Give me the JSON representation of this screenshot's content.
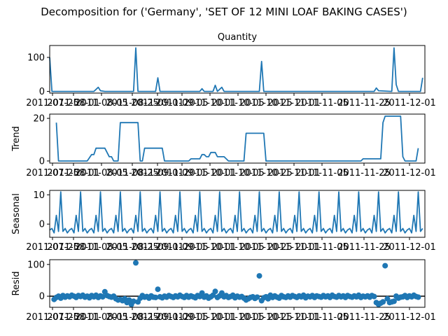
{
  "figure": {
    "suptitle": "Decomposition for ('Germany', 'SET OF 12 MINI LOAF BAKING CASES')",
    "line_color": "#1f77b4"
  },
  "chart_data": [
    {
      "type": "line",
      "title": "Quantity",
      "ylabel": "",
      "ylim": [
        -5,
        135
      ],
      "yticks": [
        0,
        100
      ],
      "x_ticks": [
        "2011-07-25",
        "2011-08-01",
        "2011-08-05",
        "2011-08-25",
        "2011-09-01",
        "2011-09-05",
        "2011-10-01",
        "2011-10-05",
        "2011-10-25",
        "2011-11-01",
        "2011-11-05",
        "2011-11-25",
        "2011-12-01"
      ],
      "points": [
        [
          0,
          100
        ],
        [
          1,
          0
        ],
        [
          20,
          0
        ],
        [
          22,
          12
        ],
        [
          23,
          2
        ],
        [
          25,
          0
        ],
        [
          38,
          0
        ],
        [
          39,
          128
        ],
        [
          40,
          0
        ],
        [
          48,
          0
        ],
        [
          49,
          40
        ],
        [
          50,
          0
        ],
        [
          68,
          0
        ],
        [
          69,
          8
        ],
        [
          70,
          0
        ],
        [
          74,
          0
        ],
        [
          75,
          18
        ],
        [
          76,
          0
        ],
        [
          78,
          12
        ],
        [
          79,
          0
        ],
        [
          95,
          0
        ],
        [
          96,
          88
        ],
        [
          97,
          0
        ],
        [
          147,
          0
        ],
        [
          148,
          10
        ],
        [
          149,
          2
        ],
        [
          155,
          0
        ],
        [
          156,
          128
        ],
        [
          157,
          20
        ],
        [
          158,
          0
        ],
        [
          168,
          0
        ],
        [
          169,
          40
        ]
      ]
    },
    {
      "type": "line",
      "title": "",
      "ylabel": "Trend",
      "ylim": [
        -1,
        22
      ],
      "yticks": [
        0,
        20
      ],
      "x_ticks": [
        "2011-07-25",
        "2011-08-01",
        "2011-08-05",
        "2011-08-25",
        "2011-09-01",
        "2011-09-05",
        "2011-10-01",
        "2011-10-05",
        "2011-10-25",
        "2011-11-01",
        "2011-11-05",
        "2011-11-25",
        "2011-12-01"
      ],
      "points": [
        [
          3,
          18
        ],
        [
          4,
          0
        ],
        [
          17,
          0
        ],
        [
          19,
          3
        ],
        [
          20,
          3
        ],
        [
          21,
          6
        ],
        [
          25,
          6
        ],
        [
          27,
          2
        ],
        [
          28,
          2
        ],
        [
          29,
          0
        ],
        [
          31,
          0
        ],
        [
          32,
          18
        ],
        [
          40,
          18
        ],
        [
          41,
          0
        ],
        [
          42,
          0
        ],
        [
          43,
          6
        ],
        [
          51,
          6
        ],
        [
          52,
          0
        ],
        [
          63,
          0
        ],
        [
          64,
          1
        ],
        [
          68,
          1
        ],
        [
          69,
          3
        ],
        [
          70,
          3
        ],
        [
          71,
          2
        ],
        [
          72,
          2
        ],
        [
          73,
          4
        ],
        [
          75,
          4
        ],
        [
          76,
          2
        ],
        [
          79,
          2
        ],
        [
          80,
          1
        ],
        [
          81,
          0
        ],
        [
          88,
          0
        ],
        [
          89,
          13
        ],
        [
          97,
          13
        ],
        [
          98,
          0
        ],
        [
          141,
          0
        ],
        [
          142,
          1
        ],
        [
          150,
          1
        ],
        [
          151,
          18
        ],
        [
          152,
          21
        ],
        [
          159,
          21
        ],
        [
          160,
          2
        ],
        [
          161,
          0
        ],
        [
          166,
          0
        ],
        [
          167,
          6
        ]
      ]
    },
    {
      "type": "line",
      "title": "",
      "ylabel": "Seasonal",
      "ylim": [
        -4.5,
        11.5
      ],
      "yticks": [
        0,
        10
      ],
      "x_ticks": [
        "2011-07-25",
        "2011-08-01",
        "2011-08-05",
        "2011-08-25",
        "2011-09-01",
        "2011-09-05",
        "2011-10-01",
        "2011-10-05",
        "2011-10-25",
        "2011-11-01",
        "2011-11-05",
        "2011-11-25",
        "2011-12-01"
      ],
      "pattern": [
        -2,
        -1.5,
        -3,
        3,
        -2.5,
        11,
        -2.5,
        -1.5,
        -3
      ],
      "n": 170
    },
    {
      "type": "scatter",
      "title": "",
      "ylabel": "Resid",
      "ylim": [
        -35,
        115
      ],
      "yticks": [
        0,
        100
      ],
      "x_ticks": [
        "2011-07-25",
        "2011-08-01",
        "2011-08-05",
        "2011-08-25",
        "2011-09-01",
        "2011-09-05",
        "2011-10-01",
        "2011-10-05",
        "2011-10-25",
        "2011-11-01",
        "2011-11-05",
        "2011-11-25",
        "2011-12-01"
      ],
      "baseline": 0,
      "points": [
        [
          2,
          -10
        ],
        [
          3,
          -4
        ],
        [
          4,
          0
        ],
        [
          5,
          -6
        ],
        [
          6,
          2
        ],
        [
          7,
          -3
        ],
        [
          8,
          1
        ],
        [
          9,
          -2
        ],
        [
          10,
          3
        ],
        [
          11,
          0
        ],
        [
          12,
          -4
        ],
        [
          13,
          2
        ],
        [
          14,
          -1
        ],
        [
          15,
          3
        ],
        [
          16,
          -3
        ],
        [
          17,
          0
        ],
        [
          18,
          -5
        ],
        [
          19,
          2
        ],
        [
          20,
          -2
        ],
        [
          21,
          3
        ],
        [
          22,
          -4
        ],
        [
          23,
          1
        ],
        [
          24,
          -2
        ],
        [
          25,
          14
        ],
        [
          26,
          2
        ],
        [
          27,
          -1
        ],
        [
          28,
          -3
        ],
        [
          29,
          0
        ],
        [
          30,
          -8
        ],
        [
          31,
          -12
        ],
        [
          32,
          -10
        ],
        [
          33,
          -14
        ],
        [
          34,
          -8
        ],
        [
          35,
          -20
        ],
        [
          36,
          -12
        ],
        [
          37,
          -26
        ],
        [
          38,
          -16
        ],
        [
          39,
          105
        ],
        [
          40,
          -18
        ],
        [
          41,
          -6
        ],
        [
          42,
          2
        ],
        [
          43,
          -3
        ],
        [
          44,
          -1
        ],
        [
          45,
          -6
        ],
        [
          46,
          1
        ],
        [
          47,
          -3
        ],
        [
          48,
          -4
        ],
        [
          49,
          22
        ],
        [
          50,
          -2
        ],
        [
          51,
          -5
        ],
        [
          52,
          0
        ],
        [
          53,
          -3
        ],
        [
          54,
          2
        ],
        [
          55,
          -1
        ],
        [
          56,
          -4
        ],
        [
          57,
          1
        ],
        [
          58,
          -2
        ],
        [
          59,
          3
        ],
        [
          60,
          -1
        ],
        [
          61,
          -4
        ],
        [
          62,
          2
        ],
        [
          63,
          -3
        ],
        [
          64,
          1
        ],
        [
          65,
          -2
        ],
        [
          66,
          -5
        ],
        [
          67,
          2
        ],
        [
          68,
          -1
        ],
        [
          69,
          10
        ],
        [
          70,
          -3
        ],
        [
          71,
          1
        ],
        [
          72,
          -6
        ],
        [
          73,
          -2
        ],
        [
          74,
          3
        ],
        [
          75,
          15
        ],
        [
          76,
          -4
        ],
        [
          77,
          1
        ],
        [
          78,
          10
        ],
        [
          79,
          -2
        ],
        [
          80,
          2
        ],
        [
          81,
          -4
        ],
        [
          82,
          -1
        ],
        [
          83,
          3
        ],
        [
          84,
          -5
        ],
        [
          85,
          0
        ],
        [
          86,
          -3
        ],
        [
          87,
          -1
        ],
        [
          88,
          -6
        ],
        [
          89,
          -12
        ],
        [
          90,
          -8
        ],
        [
          91,
          -4
        ],
        [
          92,
          -2
        ],
        [
          93,
          -7
        ],
        [
          94,
          -3
        ],
        [
          95,
          64
        ],
        [
          96,
          -14
        ],
        [
          97,
          -5
        ],
        [
          98,
          -2
        ],
        [
          99,
          -8
        ],
        [
          100,
          3
        ],
        [
          101,
          -4
        ],
        [
          102,
          1
        ],
        [
          103,
          -3
        ],
        [
          104,
          -6
        ],
        [
          105,
          2
        ],
        [
          106,
          -2
        ],
        [
          107,
          -4
        ],
        [
          108,
          1
        ],
        [
          109,
          -3
        ],
        [
          110,
          2
        ],
        [
          111,
          -1
        ],
        [
          112,
          -4
        ],
        [
          113,
          1
        ],
        [
          114,
          -2
        ],
        [
          115,
          3
        ],
        [
          116,
          -5
        ],
        [
          117,
          0
        ],
        [
          118,
          -2
        ],
        [
          119,
          2
        ],
        [
          120,
          -4
        ],
        [
          121,
          1
        ],
        [
          122,
          -1
        ],
        [
          123,
          -3
        ],
        [
          124,
          2
        ],
        [
          125,
          -2
        ],
        [
          126,
          1
        ],
        [
          127,
          -4
        ],
        [
          128,
          3
        ],
        [
          129,
          -1
        ],
        [
          130,
          -3
        ],
        [
          131,
          2
        ],
        [
          132,
          -2
        ],
        [
          133,
          1
        ],
        [
          134,
          -4
        ],
        [
          135,
          2
        ],
        [
          136,
          -1
        ],
        [
          137,
          -3
        ],
        [
          138,
          1
        ],
        [
          139,
          -2
        ],
        [
          140,
          3
        ],
        [
          141,
          -4
        ],
        [
          142,
          0
        ],
        [
          143,
          -2
        ],
        [
          144,
          1
        ],
        [
          145,
          -3
        ],
        [
          146,
          2
        ],
        [
          147,
          -1
        ],
        [
          148,
          -20
        ],
        [
          149,
          -26
        ],
        [
          150,
          -22
        ],
        [
          151,
          -18
        ],
        [
          152,
          96
        ],
        [
          153,
          -8
        ],
        [
          154,
          -20
        ],
        [
          155,
          -18
        ],
        [
          156,
          -16
        ],
        [
          157,
          0
        ],
        [
          158,
          -6
        ],
        [
          159,
          -3
        ],
        [
          160,
          -2
        ],
        [
          161,
          2
        ],
        [
          162,
          -4
        ],
        [
          163,
          1
        ],
        [
          164,
          -2
        ],
        [
          165,
          3
        ],
        [
          166,
          -1
        ],
        [
          167,
          -3
        ]
      ]
    }
  ]
}
